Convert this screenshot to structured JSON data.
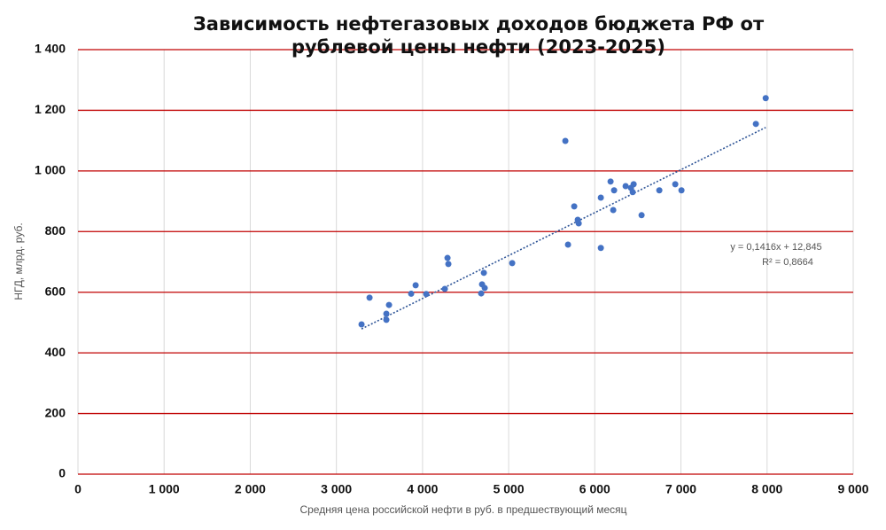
{
  "chart_data": {
    "type": "scatter",
    "title": "Зависимость нефтегазовых доходов бюджета РФ от рублевой цены нефти (2023-2025)",
    "x_label": "Средняя цена российской нефти  в руб. в предшествующий месяц",
    "y_label": "НГД, млрд. руб.",
    "color": "#4472c4",
    "grid_color": "#c00000",
    "x": [
      3292,
      3385,
      3580,
      3580,
      3611,
      3868,
      3920,
      4043,
      4259,
      4290,
      4300,
      4691,
      4681,
      4722,
      4712,
      5041,
      5658,
      5689,
      5761,
      5802,
      5813,
      6070,
      6070,
      6183,
      6224,
      6214,
      6358,
      6420,
      6440,
      6451,
      6543,
      6749,
      6934,
      7006,
      7870,
      7984
    ],
    "values": [
      494,
      582,
      529,
      509,
      558,
      595,
      623,
      594,
      611,
      713,
      693,
      626,
      596,
      614,
      664,
      696,
      1099,
      757,
      883,
      839,
      827,
      746,
      912,
      965,
      936,
      871,
      950,
      944,
      930,
      956,
      854,
      936,
      956,
      936,
      1155,
      1240
    ],
    "xlim": [
      0,
      9000
    ],
    "ylim": [
      0,
      1400
    ],
    "xticks": [
      0,
      {
        "value": 1000,
        "label": "1 000"
      },
      {
        "value": 2000,
        "label": "2 000"
      },
      {
        "value": 3000,
        "label": "3 000"
      },
      {
        "value": 4000,
        "label": "4 000"
      },
      {
        "value": 5000,
        "label": "5 000"
      },
      {
        "value": 6000,
        "label": "6 000"
      },
      {
        "value": 7000,
        "label": "7 000"
      },
      {
        "value": 8000,
        "label": "8 000"
      },
      {
        "value": 9000,
        "label": "9 000"
      }
    ],
    "yticks": [
      0,
      200,
      400,
      600,
      800,
      {
        "value": 1000,
        "label": "1 000"
      },
      {
        "value": 1200,
        "label": "1 200"
      },
      {
        "value": 1400,
        "label": "1 400"
      }
    ],
    "trendline": {
      "slope": 0.1416,
      "intercept": 12.845,
      "equation": "y = 0,1416x + 12,845",
      "r2": "R² = 0,8664"
    }
  }
}
